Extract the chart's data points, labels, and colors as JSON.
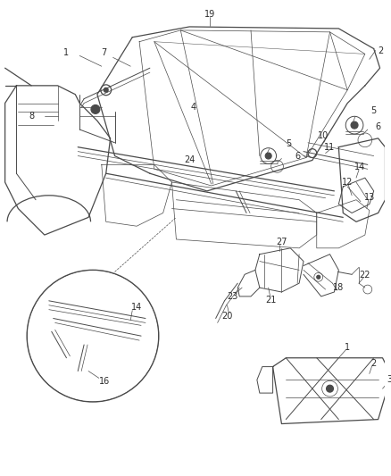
{
  "bg_color": "#ffffff",
  "line_color": "#4a4a4a",
  "text_color": "#2a2a2a",
  "figsize": [
    4.38,
    5.33
  ],
  "dpi": 100,
  "font_size": 7.0,
  "lw_main": 0.9,
  "lw_thin": 0.5,
  "lw_med": 0.7
}
